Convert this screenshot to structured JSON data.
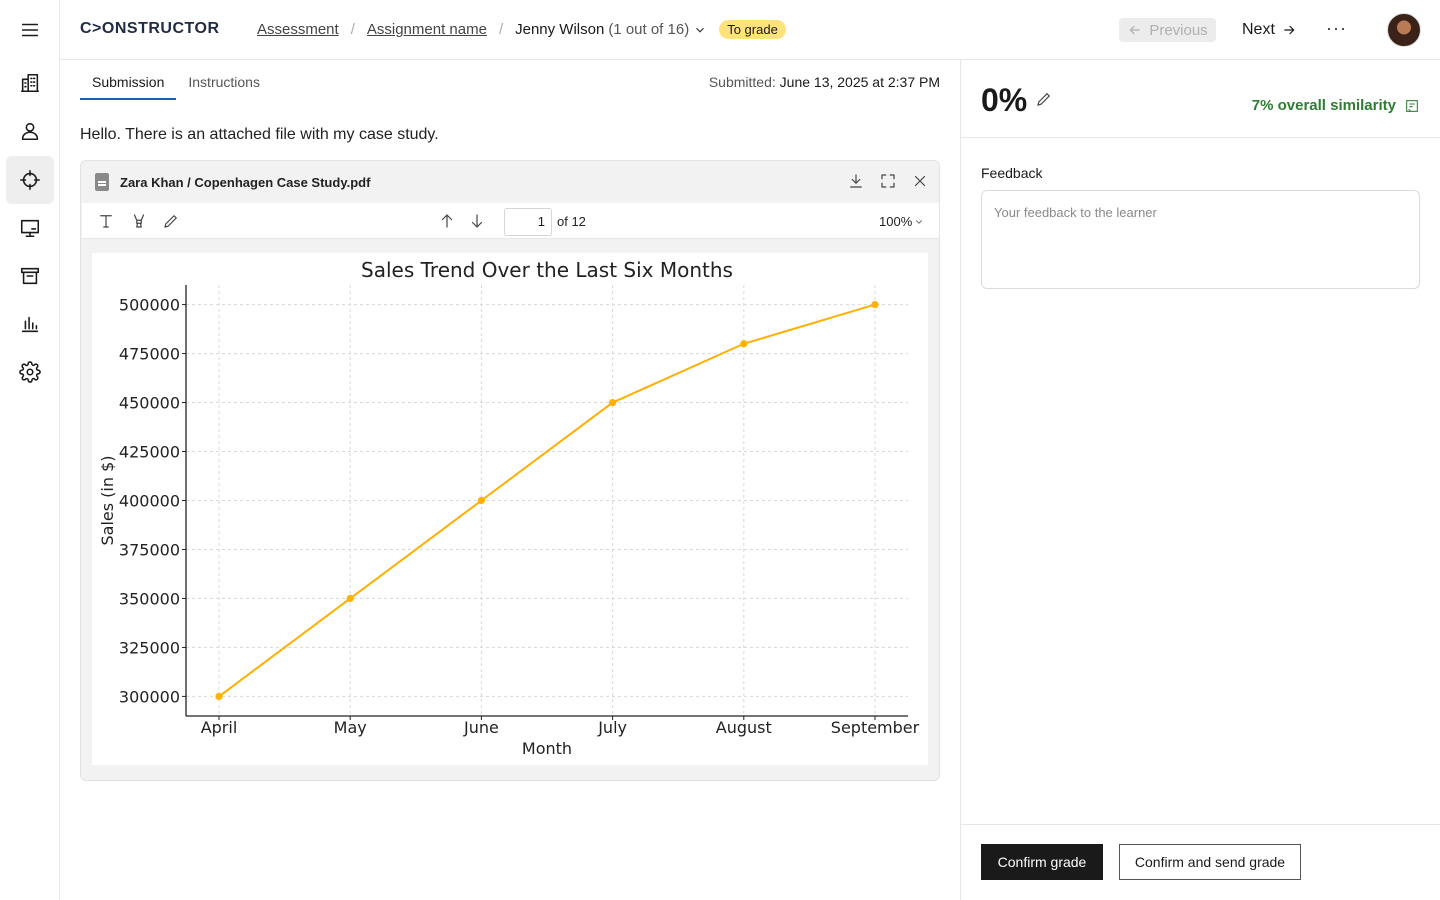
{
  "app": {
    "logo_text": "C>ONSTRUCTOR"
  },
  "breadcrumbs": {
    "assessment": "Assessment",
    "assignment": "Assignment name",
    "learner": "Jenny Wilson",
    "learner_count": "(1 out of 16)",
    "status_badge": "To grade"
  },
  "nav": {
    "previous": "Previous",
    "next": "Next",
    "more": "···"
  },
  "sidebar": {
    "items": [
      {
        "icon": "menu-icon"
      },
      {
        "icon": "building-icon"
      },
      {
        "icon": "user-icon"
      },
      {
        "icon": "crosshair-icon",
        "active": true
      },
      {
        "icon": "presentation-icon"
      },
      {
        "icon": "archive-icon"
      },
      {
        "icon": "bar-chart-icon"
      },
      {
        "icon": "gear-icon"
      }
    ]
  },
  "main": {
    "tabs": [
      {
        "label": "Submission",
        "active": true
      },
      {
        "label": "Instructions"
      }
    ],
    "submitted_label": "Submitted:",
    "submitted_date": "June 13, 2025 at 2:37 PM",
    "message": "Hello. There is an attached file with my case study."
  },
  "viewer": {
    "file_name": "Zara Khan / Copenhagen Case Study.pdf",
    "page": "1",
    "page_of": "of 12",
    "zoom": "100%"
  },
  "chart_data": {
    "type": "line",
    "title": "Sales Trend Over the Last Six Months",
    "xlabel": "Month",
    "ylabel": "Sales (in $)",
    "categories": [
      "April",
      "May",
      "June",
      "July",
      "August",
      "September"
    ],
    "series": [
      {
        "values": [
          300000,
          350000,
          400000,
          450000,
          480000,
          500000
        ],
        "color": "#ffb000"
      }
    ],
    "yticks": [
      300000,
      325000,
      350000,
      375000,
      400000,
      425000,
      450000,
      475000,
      500000
    ],
    "ylim": [
      290000,
      510000
    ],
    "grid": true
  },
  "grading": {
    "grade": "0%",
    "similarity": "7% overall similarity",
    "feedback_label": "Feedback",
    "feedback_placeholder": "Your feedback to the learner",
    "confirm_grade": "Confirm grade",
    "confirm_send": "Confirm and send grade"
  },
  "colors": {
    "accent_tab": "#1f5fa6",
    "badge": "#ffe27a",
    "similarity": "#2e7d32"
  }
}
